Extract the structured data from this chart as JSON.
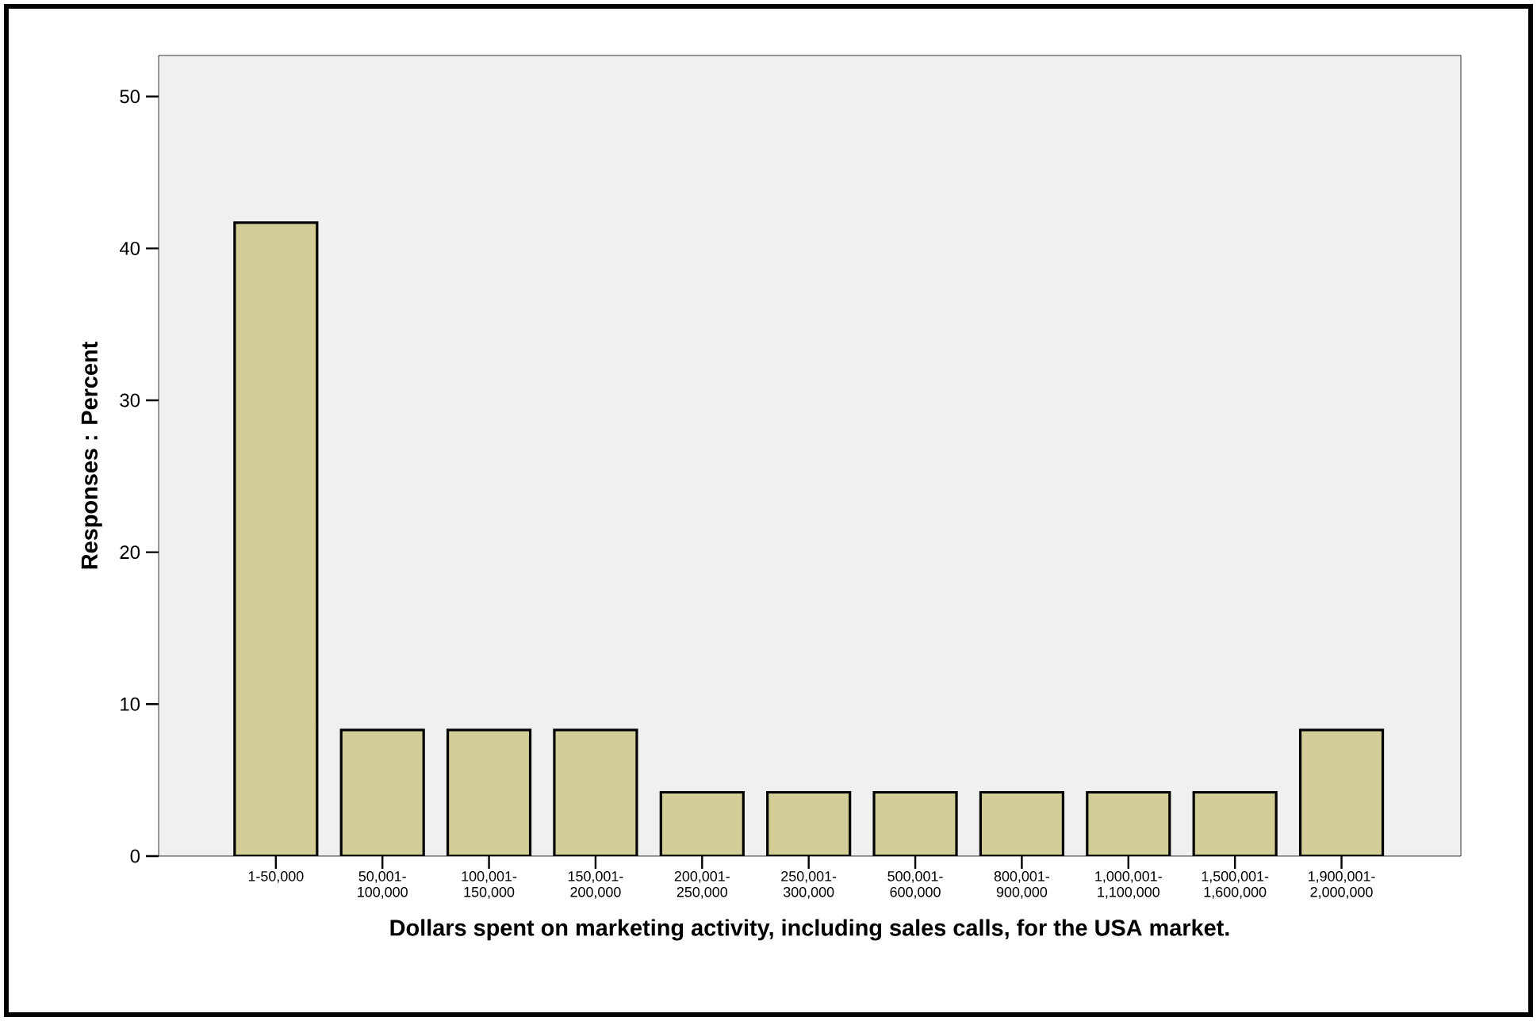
{
  "chart_data": {
    "type": "bar",
    "xlabel": "Dollars spent on marketing activity, including sales calls, for the USA market.",
    "ylabel": "Responses : Percent",
    "categories": [
      "1-50,000",
      "50,001-100,000",
      "100,001-150,000",
      "150,001-200,000",
      "200,001-250,000",
      "250,001-300,000",
      "500,001-600,000",
      "800,001-900,000",
      "1,000,001-1,100,000",
      "1,500,001-1,600,000",
      "1,900,001-2,000,000"
    ],
    "values": [
      41.7,
      8.3,
      8.3,
      8.3,
      4.2,
      4.2,
      4.2,
      4.2,
      4.2,
      4.2,
      8.3
    ],
    "color": "#d3ce98",
    "ylim": [
      0,
      52.7
    ],
    "yticks": [
      0,
      10,
      20,
      30,
      40,
      50
    ],
    "grid": false
  }
}
